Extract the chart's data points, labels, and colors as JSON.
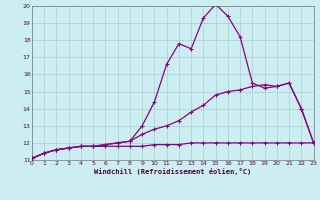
{
  "title": "",
  "xlabel": "Windchill (Refroidissement éolien,°C)",
  "bg_color": "#cdeef0",
  "grid_color": "#aad4d8",
  "line_color": "#880088",
  "xlim": [
    0,
    23
  ],
  "ylim": [
    11,
    20
  ],
  "xticks": [
    0,
    1,
    2,
    3,
    4,
    5,
    6,
    7,
    8,
    9,
    10,
    11,
    12,
    13,
    14,
    15,
    16,
    17,
    18,
    19,
    20,
    21,
    22,
    23
  ],
  "yticks": [
    11,
    12,
    13,
    14,
    15,
    16,
    17,
    18,
    19,
    20
  ],
  "series1_x": [
    0,
    1,
    2,
    3,
    4,
    5,
    6,
    7,
    8,
    9,
    10,
    11,
    12,
    13,
    14,
    15,
    16,
    17,
    18,
    19,
    20,
    21,
    22,
    23
  ],
  "series1_y": [
    11.1,
    11.4,
    11.6,
    11.7,
    11.8,
    11.8,
    11.8,
    11.8,
    11.8,
    11.8,
    11.9,
    11.9,
    11.9,
    12.0,
    12.0,
    12.0,
    12.0,
    12.0,
    12.0,
    12.0,
    12.0,
    12.0,
    12.0,
    12.0
  ],
  "series2_x": [
    0,
    1,
    2,
    3,
    4,
    5,
    6,
    7,
    8,
    9,
    10,
    11,
    12,
    13,
    14,
    15,
    16,
    17,
    18,
    19,
    20,
    21,
    22,
    23
  ],
  "series2_y": [
    11.1,
    11.4,
    11.6,
    11.7,
    11.8,
    11.8,
    11.9,
    12.0,
    12.1,
    12.5,
    12.8,
    13.0,
    13.3,
    13.8,
    14.2,
    14.8,
    15.0,
    15.1,
    15.3,
    15.4,
    15.3,
    15.5,
    14.0,
    12.0
  ],
  "series3_x": [
    0,
    1,
    2,
    3,
    4,
    5,
    6,
    7,
    8,
    9,
    10,
    11,
    12,
    13,
    14,
    15,
    16,
    17,
    18,
    19,
    20,
    21,
    22,
    23
  ],
  "series3_y": [
    11.1,
    11.4,
    11.6,
    11.7,
    11.8,
    11.8,
    11.9,
    12.0,
    12.1,
    13.0,
    14.4,
    16.6,
    17.8,
    17.5,
    19.3,
    20.1,
    19.4,
    18.2,
    15.5,
    15.2,
    15.3,
    15.5,
    14.0,
    12.0
  ],
  "markersize": 2.5,
  "linewidth": 0.9
}
